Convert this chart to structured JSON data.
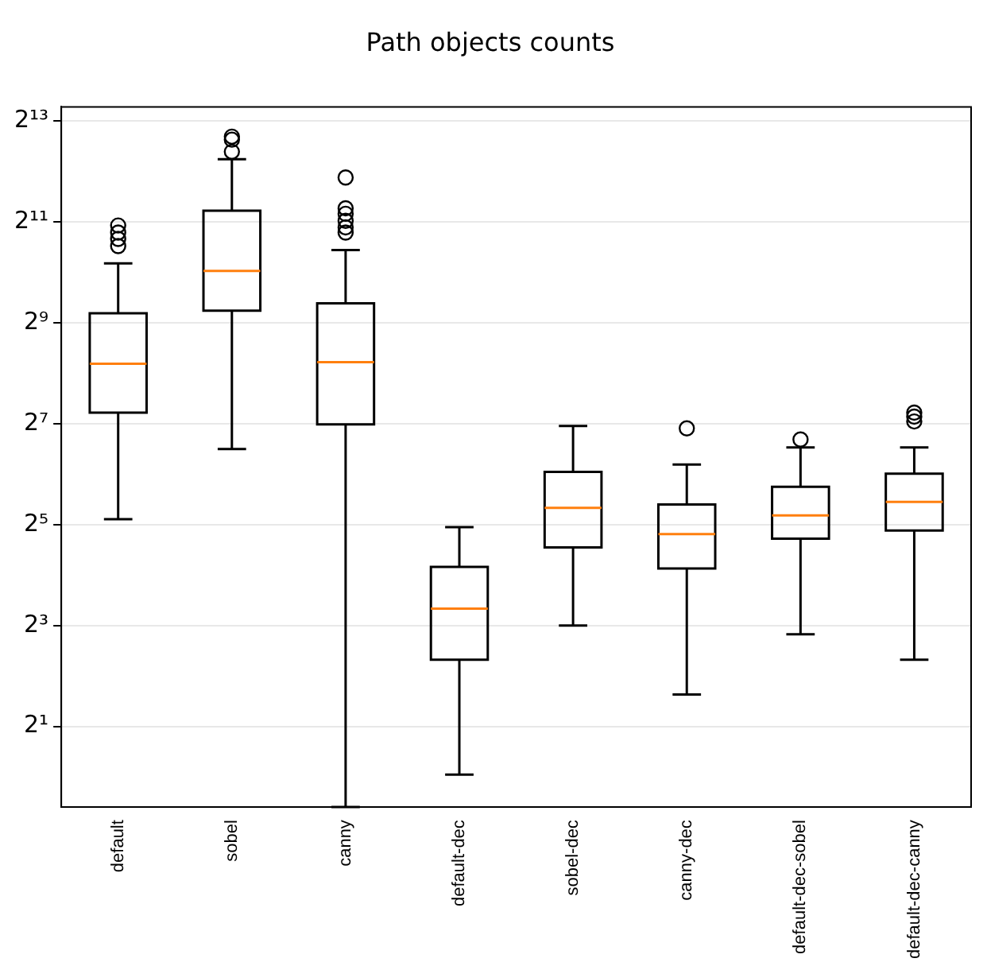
{
  "chart_data": {
    "type": "box",
    "title": "Path objects counts",
    "categories": [
      "default",
      "sobel",
      "canny",
      "default-dec",
      "sobel-dec",
      "canny-dec",
      "default-dec-sobel",
      "default-dec-canny"
    ],
    "series": [
      {
        "color": "#000000",
        "boxes": [
          {
            "low": 34.5,
            "q1": 149,
            "median": 292,
            "q3": 584,
            "high": 1160,
            "outliers": [
              1950,
              1770,
              1620,
              1470
            ]
          },
          {
            "low": 90.5,
            "q1": 605,
            "median": 1045,
            "q3": 2390,
            "high": 4840,
            "outliers": [
              6610,
              6340,
              5370
            ]
          },
          {
            "low": 0.66,
            "q1": 127,
            "median": 298,
            "q3": 670,
            "high": 1390,
            "outliers": [
              3770,
              2470,
              2290,
              2080,
              1900,
              1770
            ]
          },
          {
            "low": 1.03,
            "q1": 5.0,
            "median": 10.1,
            "q3": 17.9,
            "high": 30.9
          },
          {
            "low": 8,
            "q1": 23.4,
            "median": 40.3,
            "q3": 66,
            "high": 124
          },
          {
            "low": 3.1,
            "q1": 17.5,
            "median": 28.1,
            "q3": 42.2,
            "high": 73,
            "outliers": [
              120
            ]
          },
          {
            "low": 7.1,
            "q1": 26.4,
            "median": 36.3,
            "q3": 53.8,
            "high": 92.4,
            "outliers": [
              103
            ]
          },
          {
            "low": 5.0,
            "q1": 29.5,
            "median": 43.7,
            "q3": 64.4,
            "high": 92.4,
            "outliers": [
              149,
              141,
              132
            ]
          }
        ]
      }
    ],
    "log": true,
    "ylim": [
      0.66,
      9950
    ],
    "yticks": [
      {
        "value": 2,
        "label": "2¹"
      },
      {
        "value": 8,
        "label": "2³"
      },
      {
        "value": 32,
        "label": "2⁵"
      },
      {
        "value": 128,
        "label": "2⁷"
      },
      {
        "value": 512,
        "label": "2⁹"
      },
      {
        "value": 2048,
        "label": "2¹¹"
      },
      {
        "value": 8192,
        "label": "2¹³"
      }
    ],
    "grid": "y",
    "marker": "circle",
    "legend": false
  }
}
